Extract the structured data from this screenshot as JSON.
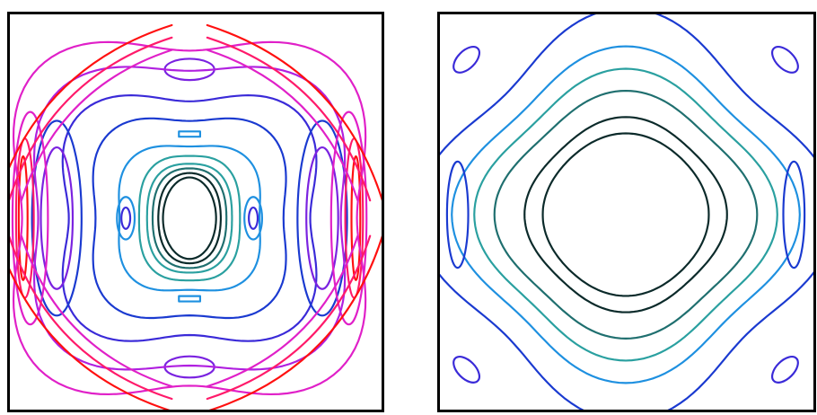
{
  "chart_data": [
    {
      "type": "contour",
      "grid": false,
      "axes_visible": false,
      "levels": [
        {
          "level": 1,
          "color": "#0b2a2a"
        },
        {
          "level": 2,
          "color": "#1f6f6f"
        },
        {
          "level": 3,
          "color": "#2aa0a0"
        },
        {
          "level": 4,
          "color": "#1e90e0"
        },
        {
          "level": 5,
          "color": "#1a3ad0"
        },
        {
          "level": 6,
          "color": "#3a2ad8"
        },
        {
          "level": 7,
          "color": "#7a22e0"
        },
        {
          "level": 8,
          "color": "#b020e0"
        },
        {
          "level": 9,
          "color": "#e020c8"
        },
        {
          "level": 10,
          "color": "#ff1a6a"
        },
        {
          "level": 11,
          "color": "#ff1010"
        }
      ]
    },
    {
      "type": "contour",
      "grid": false,
      "axes_visible": false,
      "levels": [
        {
          "level": 1,
          "color": "#0b2a2a"
        },
        {
          "level": 2,
          "color": "#1f6f6f"
        },
        {
          "level": 3,
          "color": "#2aa0a0"
        },
        {
          "level": 4,
          "color": "#1e90e0"
        },
        {
          "level": 5,
          "color": "#1a3ad0"
        },
        {
          "level": 6,
          "color": "#3a2ad8"
        }
      ]
    }
  ]
}
